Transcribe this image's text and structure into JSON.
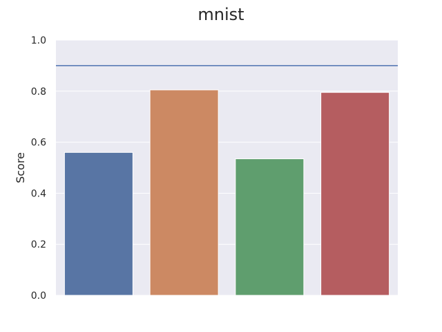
{
  "chart_data": {
    "type": "bar",
    "title": "mnist",
    "xlabel": "",
    "ylabel": "Score",
    "ylim": [
      0,
      1.0
    ],
    "yticks": [
      "0.0",
      "0.2",
      "0.4",
      "0.6",
      "0.8",
      "1.0"
    ],
    "categories": [
      "",
      "",
      "",
      ""
    ],
    "values": [
      0.56,
      0.805,
      0.535,
      0.795
    ],
    "bar_colors": [
      "#5875a4",
      "#cc8963",
      "#5f9e6e",
      "#b55d60"
    ],
    "reference_line": {
      "y": 0.9,
      "color": "#4c72b0"
    },
    "grid": true,
    "background": "#eaeaf2"
  }
}
